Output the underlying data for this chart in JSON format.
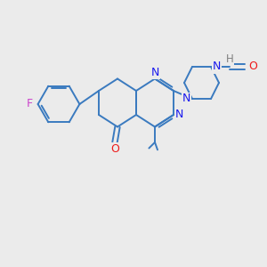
{
  "bg_color": "#ebebeb",
  "bond_color": "#3a7abf",
  "bond_width": 1.4,
  "atom_colors": {
    "N": "#1a1aee",
    "O": "#ee1a1a",
    "F": "#cc44cc",
    "H": "#808080"
  },
  "figsize": [
    3.0,
    3.0
  ],
  "dpi": 100,
  "xlim": [
    0,
    10
  ],
  "ylim": [
    0,
    10
  ]
}
